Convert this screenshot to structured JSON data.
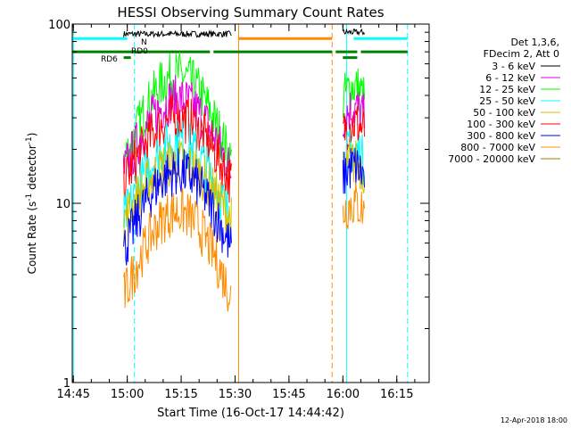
{
  "chart_data": {
    "type": "line",
    "title": "HESSI Observing Summary Count Rates",
    "xlabel": "Start Time (16-Oct-17 14:44:42)",
    "ylabel": "Count Rate (s",
    "ylabel_sup": "-1",
    "ylabel_mid": " detector",
    "ylabel_end": ")",
    "yscale": "log",
    "ylim": [
      1,
      100
    ],
    "xlim": [
      "14:44:42",
      "16:24:00"
    ],
    "x_ticks": [
      "14:45",
      "15:00",
      "15:15",
      "15:30",
      "15:45",
      "16:00",
      "16:15"
    ],
    "y_ticks": [
      "1",
      "10",
      "100"
    ],
    "legend_header": [
      "Det 1,3,6,",
      "FDecim 2, Att 0"
    ],
    "legend": [
      {
        "name": "3 - 6 keV",
        "color": "#000000"
      },
      {
        "name": "6 - 12 keV",
        "color": "#e600e6"
      },
      {
        "name": "12 - 25 keV",
        "color": "#00ff00"
      },
      {
        "name": "25 - 50 keV",
        "color": "#00ffff"
      },
      {
        "name": "50 - 100 keV",
        "color": "#d4c000"
      },
      {
        "name": "100 - 300 keV",
        "color": "#ff0000"
      },
      {
        "name": "300 - 800 keV",
        "color": "#0000ff"
      },
      {
        "name": "800 - 7000 keV",
        "color": "#ff8c00"
      },
      {
        "name": "7000 - 20000 keV",
        "color": "#a07800"
      }
    ],
    "state_labels": {
      "n": "N",
      "rd0": "RD0",
      "rd6": "RD6"
    },
    "series": [
      {
        "name": "3 - 6 keV",
        "color": "#000000",
        "segments": [
          {
            "from": "14:59:00",
            "to": "15:29:00",
            "level": 88
          },
          {
            "from": "16:00:00",
            "to": "16:06:00",
            "level": 90
          }
        ]
      },
      {
        "name": "12 - 25 keV",
        "color": "#00ff00",
        "segments": [
          {
            "from": "14:59:00",
            "to": "15:29:00",
            "peak": 52,
            "edge": 17
          },
          {
            "from": "16:00:00",
            "to": "16:06:00",
            "peak": 45,
            "edge": 38
          }
        ]
      },
      {
        "name": "6 - 12 keV",
        "color": "#e600e6",
        "segments": [
          {
            "from": "14:59:00",
            "to": "15:29:00",
            "peak": 38,
            "edge": 15
          },
          {
            "from": "16:00:00",
            "to": "16:06:00",
            "peak": 34,
            "edge": 30
          }
        ]
      },
      {
        "name": "100 - 300 keV",
        "color": "#ff0000",
        "segments": [
          {
            "from": "14:59:00",
            "to": "15:29:00",
            "peak": 30,
            "edge": 13
          },
          {
            "from": "16:00:00",
            "to": "16:06:00",
            "peak": 28,
            "edge": 25
          }
        ]
      },
      {
        "name": "25 - 50 keV",
        "color": "#00ffff",
        "segments": [
          {
            "from": "14:59:00",
            "to": "15:29:00",
            "peak": 22,
            "edge": 8
          },
          {
            "from": "16:00:00",
            "to": "16:06:00",
            "peak": 20,
            "edge": 17
          }
        ]
      },
      {
        "name": "50 - 100 keV",
        "color": "#d4c000",
        "segments": [
          {
            "from": "14:59:00",
            "to": "15:29:00",
            "peak": 17,
            "edge": 8
          },
          {
            "from": "16:00:00",
            "to": "16:06:00",
            "peak": 17,
            "edge": 15
          }
        ]
      },
      {
        "name": "300 - 800 keV",
        "color": "#0000ff",
        "segments": [
          {
            "from": "14:59:00",
            "to": "15:29:00",
            "peak": 15,
            "edge": 5.5
          },
          {
            "from": "16:00:00",
            "to": "16:06:00",
            "peak": 16,
            "edge": 14
          }
        ]
      },
      {
        "name": "800 - 7000 keV",
        "color": "#ff8c00",
        "segments": [
          {
            "from": "14:59:00",
            "to": "15:29:00",
            "peak": 9,
            "edge": 3
          },
          {
            "from": "16:00:00",
            "to": "16:06:00",
            "peak": 10,
            "edge": 9
          }
        ]
      }
    ],
    "vertical_lines": [
      {
        "time": "14:45:00",
        "color": "#00ffff",
        "style": "solid"
      },
      {
        "time": "15:02:00",
        "color": "#00ffff",
        "style": "dashed"
      },
      {
        "time": "15:31:00",
        "color": "#ff8c00",
        "style": "solid"
      },
      {
        "time": "15:57:00",
        "color": "#ff8c00",
        "style": "dashed"
      },
      {
        "time": "16:01:00",
        "color": "#00ffff",
        "style": "solid"
      },
      {
        "time": "16:18:00",
        "color": "#00ffff",
        "style": "dashed"
      }
    ],
    "flag_bars": [
      {
        "color": "#00ffff",
        "level": 83,
        "segments": [
          [
            "14:44:42",
            "15:00:00"
          ],
          [
            "16:03:00",
            "16:18:00"
          ]
        ]
      },
      {
        "color": "#ff8c00",
        "level": 83,
        "segments": [
          [
            "15:31:00",
            "15:57:00"
          ]
        ]
      },
      {
        "color": "#008000",
        "level": 70,
        "segments": [
          [
            "14:44:42",
            "15:23:00"
          ],
          [
            "15:24:00",
            "15:57:00"
          ],
          [
            "15:58:00",
            "16:04:00"
          ],
          [
            "16:05:00",
            "16:18:00"
          ]
        ]
      },
      {
        "color": "#008000",
        "level": 65,
        "segments": [
          [
            "14:59:00",
            "15:01:00"
          ],
          [
            "16:00:00",
            "16:04:00"
          ]
        ]
      }
    ]
  },
  "footer": {
    "date": "12-Apr-2018 18:00"
  }
}
